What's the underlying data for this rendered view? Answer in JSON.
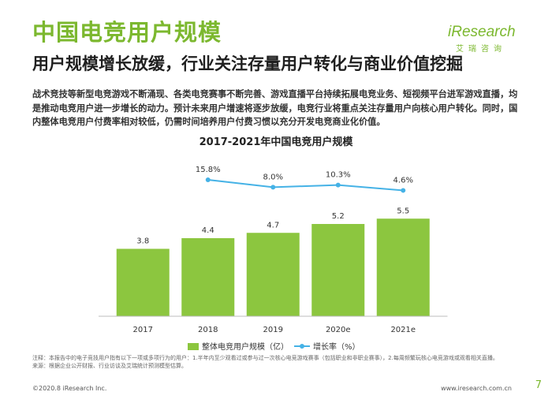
{
  "header": {
    "title": "中国电竞用户规模",
    "subtitle": "用户规模增长放缓，行业关注存量用户转化与商业价值挖掘",
    "description": "战术竞技等新型电竞游戏不断涌现、各类电竞赛事不断完善、游戏直播平台持续拓展电竞业务、短视频平台进军游戏直播，均是推动电竞用户进一步增长的动力。预计未来用户增速将逐步放缓，电竞行业将重点关注存量用户向核心用户转化。同时，国内整体电竞用户付费率相对较低，仍需时间培养用户付费习惯以充分开发电竞商业化价值。"
  },
  "logo": {
    "name": "iResearch",
    "sub": "艾瑞咨询"
  },
  "colors": {
    "accent": "#7cb82f",
    "bar": "#8cc63f",
    "line": "#45b2e6"
  },
  "chart_data": {
    "type": "bar",
    "title": "2017-2021年中国电竞用户规模",
    "categories": [
      "2017",
      "2018",
      "2019",
      "2020e",
      "2021e"
    ],
    "series": [
      {
        "name": "整体电竞用户规模（亿）",
        "type": "bar",
        "values": [
          3.8,
          4.4,
          4.7,
          5.2,
          5.5
        ],
        "labels": [
          "3.8",
          "4.4",
          "4.7",
          "5.2",
          "5.5"
        ]
      },
      {
        "name": "增长率（%）",
        "type": "line",
        "values": [
          null,
          15.8,
          8.0,
          10.3,
          4.6
        ],
        "labels": [
          "",
          "15.8%",
          "8.0%",
          "10.3%",
          "4.6%"
        ]
      }
    ],
    "legend_position": "bottom",
    "grid": false
  },
  "notes": {
    "note": "注释：本报告中的电子竞技用户指有以下一项或多项行为的用户：1.半年内至少观看过或参与过一次核心电竞游戏赛事（包括职业和非职业赛事），2.每周频繁玩核心电竞游戏或观看相关直播。",
    "source": "来源：根据企业公开财报、行业访谈及艾瑞统计预测模型估算。"
  },
  "footer": {
    "copyright": "©2020.8 iResearch Inc.",
    "url": "www.iresearch.com.cn",
    "page": "7"
  }
}
